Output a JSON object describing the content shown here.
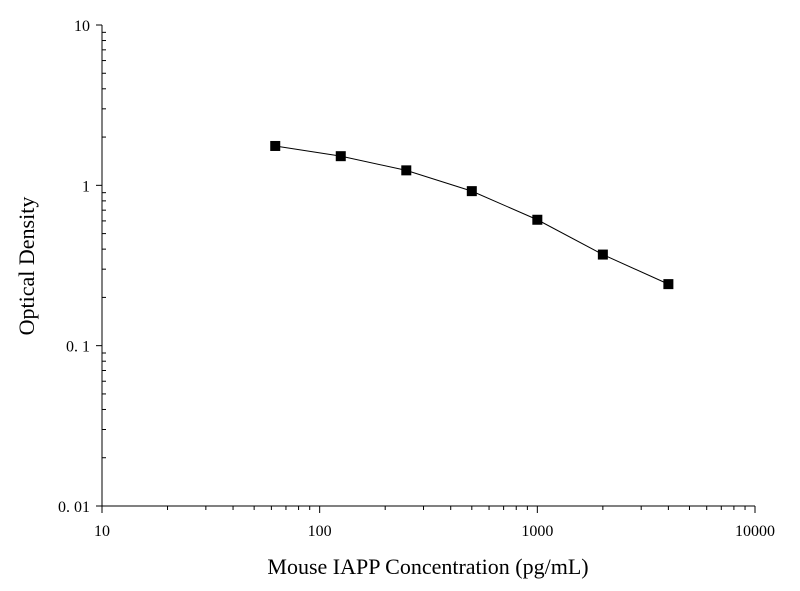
{
  "chart_data": {
    "type": "line",
    "x_label": "Mouse IAPP Concentration (pg/mL)",
    "y_label": "Optical Density",
    "x": [
      62.5,
      125,
      250,
      500,
      1000,
      2000,
      4000
    ],
    "values": [
      1.76,
      1.52,
      1.24,
      0.92,
      0.61,
      0.37,
      0.242
    ],
    "color": "#000000",
    "x_scale": "log",
    "y_scale": "log",
    "xlim": [
      10,
      10000
    ],
    "xticks": [
      10,
      100,
      1000,
      10000
    ],
    "ylim": [
      0.01,
      10
    ],
    "yticks": [
      {
        "value": 0.01,
        "label": "0. 01"
      },
      {
        "value": 0.1,
        "label": "0. 1"
      },
      1,
      10
    ],
    "grid": false
  }
}
